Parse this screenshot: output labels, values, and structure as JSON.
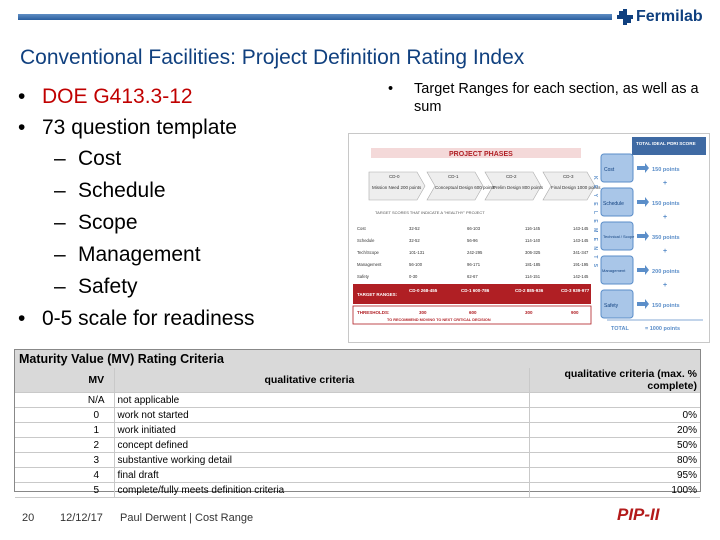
{
  "header": {
    "logo_text": "Fermilab"
  },
  "title": "Conventional Facilities: Project Definition Rating Index",
  "left_bullets": {
    "doe": "DOE G413.3-12",
    "template": "73 question template",
    "sub_items": [
      "Cost",
      "Schedule",
      "Scope",
      "Management",
      "Safety"
    ],
    "scale": "0-5 scale for readiness"
  },
  "right_bullet": "Target Ranges for each section, as well as a sum",
  "figure": {
    "project_phases": "PROJECT PHASES",
    "phases": [
      {
        "tag": "CD-0",
        "text": "Mission Need 200 points"
      },
      {
        "tag": "CD-1",
        "text": "Conceptual Design 600 points"
      },
      {
        "tag": "CD-2",
        "text": "Prelim Design 800 points"
      },
      {
        "tag": "CD-3",
        "text": "Final Design 1000 points"
      }
    ],
    "target_caption": "TARGET SCORES THAT INDICATE A \"HEALTHY\" PROJECT",
    "rows": [
      {
        "label": "Cost",
        "vals": [
          "32-52",
          "66-103",
          "116-145",
          "143-145"
        ]
      },
      {
        "label": "Schedule",
        "vals": [
          "32-52",
          "56-96",
          "114-140",
          "143-145"
        ]
      },
      {
        "label": "Tech/Scope",
        "vals": [
          "101-131",
          "242-295",
          "306-325",
          "341-347"
        ]
      },
      {
        "label": "Management",
        "vals": [
          "56-100",
          "96-171",
          "181-185",
          "191-195"
        ]
      },
      {
        "label": "Safety",
        "vals": [
          "0-30",
          "62-67",
          "114-151",
          "142-145"
        ]
      }
    ],
    "target_label": "TARGET RANGES:",
    "target_ranges": [
      "CD-0 268-455",
      "CD-1 600-786",
      "CD-2 885-936",
      "CD-3 939-977"
    ],
    "thresholds_label": "THRESHOLDS:",
    "thresholds_note": "TO RECOMMEND MOVING TO NEXT CRITICAL DECISION",
    "thresholds": [
      "300",
      "600",
      "300",
      "900"
    ],
    "keys_letters": "K E Y E L E M E N T S",
    "ideal_title": "TOTAL IDEAL PDRI SCORE",
    "elements": [
      {
        "name": "Cost",
        "points": "150 points"
      },
      {
        "name": "Schedule",
        "points": "150 points"
      },
      {
        "name": "Technical / Scope",
        "points": "350 points"
      },
      {
        "name": "Management",
        "points": "200 points"
      },
      {
        "name": "Safety",
        "points": "150 points"
      }
    ],
    "total_label": "TOTAL",
    "total_value": "= 1000 points"
  },
  "mv_table": {
    "title": "Maturity Value (MV) Rating Criteria",
    "headers": [
      "MV",
      "qualitative criteria",
      "qualitative criteria (max. % complete)"
    ],
    "rows": [
      {
        "mv": "N/A",
        "criteria": "not applicable",
        "pct": ""
      },
      {
        "mv": "0",
        "criteria": "work not started",
        "pct": "0%"
      },
      {
        "mv": "1",
        "criteria": "work initiated",
        "pct": "20%"
      },
      {
        "mv": "2",
        "criteria": "concept defined",
        "pct": "50%"
      },
      {
        "mv": "3",
        "criteria": "substantive working detail",
        "pct": "80%"
      },
      {
        "mv": "4",
        "criteria": "final draft",
        "pct": "95%"
      },
      {
        "mv": "5",
        "criteria": "complete/fully meets definition criteria",
        "pct": "100%"
      }
    ]
  },
  "footer": {
    "page": "20",
    "date": "12/12/17",
    "author": "Paul Derwent | Cost Range",
    "brand": "PIP-II"
  },
  "colors": {
    "title_blue": "#10407f",
    "red_accent": "#c00000",
    "figure_red": "#b01f24",
    "element_blue": "#5b8ec9"
  }
}
